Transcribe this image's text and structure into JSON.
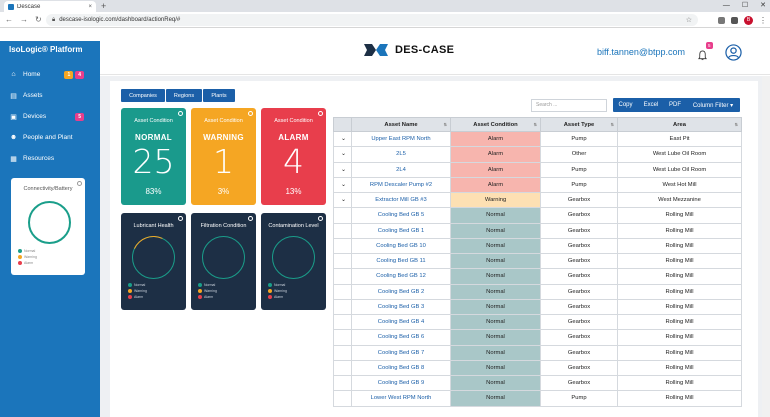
{
  "browser": {
    "tab_title": "Descase",
    "tab_close": "×",
    "new_tab": "+",
    "window_controls": [
      "—",
      "☐",
      "✕"
    ],
    "url": "descase-isologic.com/dashboard/actionReq/#",
    "lock_icon": "lock-icon",
    "profile_initial": "B"
  },
  "sidebar": {
    "brand": "IsoLogic® Platform",
    "items": [
      {
        "label": "Home",
        "icon": "home-icon",
        "badges": [
          "1",
          "4"
        ]
      },
      {
        "label": "Assets",
        "icon": "assets-icon",
        "badges": []
      },
      {
        "label": "Devices",
        "icon": "devices-icon",
        "badges": [
          "5"
        ]
      },
      {
        "label": "People and Plant",
        "icon": "people-icon",
        "badges": []
      },
      {
        "label": "Resources",
        "icon": "resources-icon",
        "badges": []
      }
    ],
    "connectivity": {
      "title": "Connectivity/Battery",
      "legend": [
        {
          "label": "Normal",
          "color": "#1a9e8a"
        },
        {
          "label": "Warning",
          "color": "#f5a623"
        },
        {
          "label": "Alarm",
          "color": "#e83e4c"
        }
      ]
    }
  },
  "header": {
    "logo_text": "DES-CASE",
    "email": "biff.tannen@btpp.com",
    "notification_count": "5"
  },
  "filters": [
    "Companies",
    "Regions",
    "Plants"
  ],
  "condition_cards": [
    {
      "label": "Asset Condition",
      "status": "NORMAL",
      "count": "25",
      "percent": "83%",
      "color": "#1a9a8c"
    },
    {
      "label": "Asset Condition",
      "status": "WARNING",
      "count": "1",
      "percent": "3%",
      "color": "#f5a623"
    },
    {
      "label": "Asset Condition",
      "status": "ALARM",
      "count": "4",
      "percent": "13%",
      "color": "#e83e4c"
    }
  ],
  "health_cards": [
    {
      "label": "Lubricant Health",
      "legend": [
        "Normal",
        "Warning",
        "Alarm"
      ]
    },
    {
      "label": "Filtration Condition",
      "legend": [
        "Normal",
        "Warning",
        "Alarm"
      ]
    },
    {
      "label": "Contamination Level",
      "legend": [
        "Normal",
        "Warning",
        "Alarm"
      ]
    }
  ],
  "toolbar": {
    "search_placeholder": "Search ...",
    "buttons": [
      "Copy",
      "Excel",
      "PDF",
      "Column Filter ▾"
    ]
  },
  "table": {
    "columns": [
      "",
      "Asset Name",
      "Asset Condition",
      "Asset Type",
      "Area"
    ],
    "rows": [
      {
        "name": "Upper East RPM North",
        "condition": "Alarm",
        "type": "Pump",
        "area": "East Pit",
        "expand": true
      },
      {
        "name": "2L5",
        "condition": "Alarm",
        "type": "Other",
        "area": "West Lube Oil Room",
        "expand": true
      },
      {
        "name": "2L4",
        "condition": "Alarm",
        "type": "Pump",
        "area": "West Lube Oil Room",
        "expand": true
      },
      {
        "name": "RPM Descaler Pump #2",
        "condition": "Alarm",
        "type": "Pump",
        "area": "West Hot Mill",
        "expand": true
      },
      {
        "name": "Extractor Mill GB #3",
        "condition": "Warning",
        "type": "Gearbox",
        "area": "West Mezzanine",
        "expand": true
      },
      {
        "name": "Cooling Bed GB 5",
        "condition": "Normal",
        "type": "Gearbox",
        "area": "Rolling Mill",
        "expand": false
      },
      {
        "name": "Cooling Bed GB 1",
        "condition": "Normal",
        "type": "Gearbox",
        "area": "Rolling Mill",
        "expand": false
      },
      {
        "name": "Cooling Bed GB 10",
        "condition": "Normal",
        "type": "Gearbox",
        "area": "Rolling Mill",
        "expand": false
      },
      {
        "name": "Cooling Bed GB 11",
        "condition": "Normal",
        "type": "Gearbox",
        "area": "Rolling Mill",
        "expand": false
      },
      {
        "name": "Cooling Bed GB 12",
        "condition": "Normal",
        "type": "Gearbox",
        "area": "Rolling Mill",
        "expand": false
      },
      {
        "name": "Cooling Bed GB 2",
        "condition": "Normal",
        "type": "Gearbox",
        "area": "Rolling Mill",
        "expand": false
      },
      {
        "name": "Cooling Bed GB 3",
        "condition": "Normal",
        "type": "Gearbox",
        "area": "Rolling Mill",
        "expand": false
      },
      {
        "name": "Cooling Bed GB 4",
        "condition": "Normal",
        "type": "Gearbox",
        "area": "Rolling Mill",
        "expand": false
      },
      {
        "name": "Cooling Bed GB 6",
        "condition": "Normal",
        "type": "Gearbox",
        "area": "Rolling Mill",
        "expand": false
      },
      {
        "name": "Cooling Bed GB 7",
        "condition": "Normal",
        "type": "Gearbox",
        "area": "Rolling Mill",
        "expand": false
      },
      {
        "name": "Cooling Bed GB 8",
        "condition": "Normal",
        "type": "Gearbox",
        "area": "Rolling Mill",
        "expand": false
      },
      {
        "name": "Cooling Bed GB 9",
        "condition": "Normal",
        "type": "Gearbox",
        "area": "Rolling Mill",
        "expand": false
      },
      {
        "name": "Lower West RPM North",
        "condition": "Normal",
        "type": "Pump",
        "area": "Rolling Mill",
        "expand": false
      }
    ]
  }
}
